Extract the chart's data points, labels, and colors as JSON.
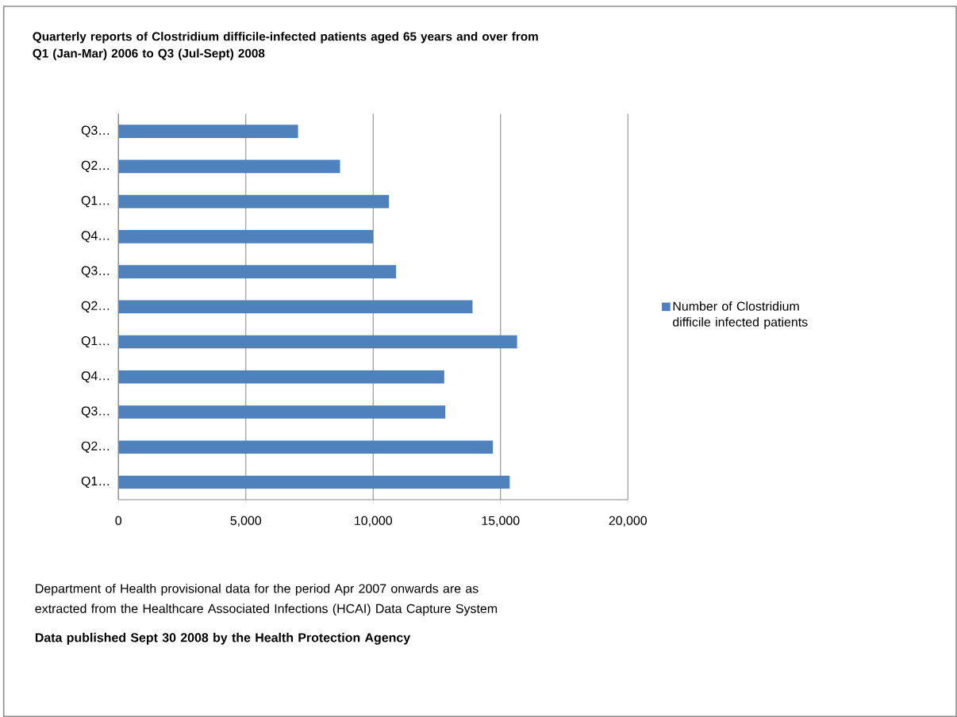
{
  "chart_data": {
    "type": "bar",
    "orientation": "horizontal",
    "title": "Quarterly reports of Clostridium difficile-infected patients aged 65 years and over from Q1 (Jan-Mar) 2006 to Q3 (Jul-Sept) 2008",
    "categories": [
      "Q3…",
      "Q2…",
      "Q1…",
      "Q4…",
      "Q3…",
      "Q2…",
      "Q1…",
      "Q4…",
      "Q3…",
      "Q2…",
      "Q1…"
    ],
    "series": [
      {
        "name": "Number of Clostridium difficile infected patients",
        "color": "#4f81bd",
        "values": [
          7050,
          8700,
          10620,
          10000,
          10900,
          13900,
          15650,
          12790,
          12830,
          14700,
          15360
        ]
      }
    ],
    "xlim": [
      0,
      20000
    ],
    "xticks": [
      0,
      {
        "value": 5000,
        "label": "5,000"
      },
      {
        "value": 10000,
        "label": "10,000"
      },
      {
        "value": 15000,
        "label": "15,000"
      },
      {
        "value": 20000,
        "label": "20,000"
      }
    ],
    "grid": "x",
    "legend": "right",
    "annotations": [
      "Department of Health provisional data for the period Apr 2007 onwards are as extracted from the Healthcare Associated Infections (HCAI) Data Capture System",
      "Data published Sept 30 2008 by the Health Protection Agency"
    ]
  }
}
